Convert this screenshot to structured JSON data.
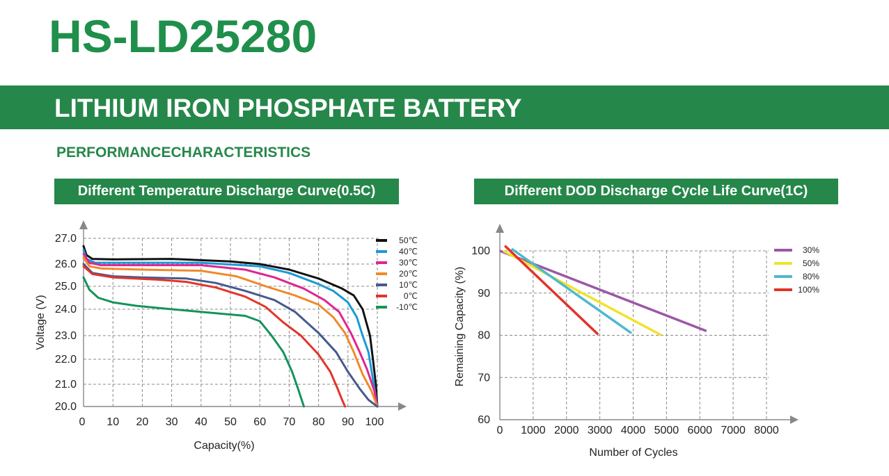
{
  "model": "HS-LD25280",
  "banner": "LITHIUM IRON PHOSPHATE BATTERY",
  "section": "PERFORMANCECHARACTERISTICS",
  "chart_data": [
    {
      "type": "line",
      "title": "Different Temperature Discharge Curve(0.5C)",
      "xlabel": "Capacity(%)",
      "ylabel": "Voltage (V)",
      "xlim": [
        0,
        100
      ],
      "ylim": [
        20.0,
        27.0
      ],
      "x_ticks": [
        "0",
        "10",
        "20",
        "30",
        "40",
        "50",
        "60",
        "70",
        "80",
        "90",
        "100"
      ],
      "y_ticks": [
        "20.0",
        "21.0",
        "22.0",
        "23.0",
        "24.0",
        "25.0",
        "26.0",
        "27.0"
      ],
      "grid": true,
      "legend": "top-right",
      "series": [
        {
          "name": "50℃",
          "color": "#111111",
          "points": [
            [
              0,
              26.7
            ],
            [
              1,
              26.35
            ],
            [
              3,
              26.2
            ],
            [
              10,
              26.18
            ],
            [
              30,
              26.2
            ],
            [
              50,
              26.1
            ],
            [
              60,
              26.0
            ],
            [
              70,
              25.75
            ],
            [
              80,
              25.35
            ],
            [
              88,
              24.9
            ],
            [
              92,
              24.6
            ],
            [
              95,
              24.0
            ],
            [
              97.5,
              23.0
            ],
            [
              98.5,
              22.0
            ],
            [
              99.5,
              21.0
            ],
            [
              100,
              20.0
            ]
          ]
        },
        {
          "name": "40℃",
          "color": "#1a9ad6",
          "points": [
            [
              0,
              26.55
            ],
            [
              1,
              26.2
            ],
            [
              4,
              26.05
            ],
            [
              20,
              26.05
            ],
            [
              40,
              26.05
            ],
            [
              60,
              25.9
            ],
            [
              70,
              25.6
            ],
            [
              80,
              25.1
            ],
            [
              85,
              24.8
            ],
            [
              90,
              24.3
            ],
            [
              93,
              23.7
            ],
            [
              95,
              23.0
            ],
            [
              97,
              22.3
            ],
            [
              98.5,
              21.2
            ],
            [
              100,
              20.0
            ]
          ]
        },
        {
          "name": "30℃",
          "color": "#e0258f",
          "points": [
            [
              0,
              26.4
            ],
            [
              2,
              26.05
            ],
            [
              6,
              25.95
            ],
            [
              20,
              25.95
            ],
            [
              40,
              25.95
            ],
            [
              55,
              25.75
            ],
            [
              65,
              25.4
            ],
            [
              75,
              24.9
            ],
            [
              82,
              24.4
            ],
            [
              87,
              23.9
            ],
            [
              91,
              23.1
            ],
            [
              94,
              22.3
            ],
            [
              96.5,
              21.6
            ],
            [
              99,
              20.7
            ],
            [
              100,
              20.0
            ]
          ]
        },
        {
          "name": "20℃",
          "color": "#ef8a2a",
          "points": [
            [
              0,
              26.25
            ],
            [
              2,
              25.9
            ],
            [
              6,
              25.8
            ],
            [
              20,
              25.75
            ],
            [
              40,
              25.7
            ],
            [
              52,
              25.45
            ],
            [
              62,
              25.0
            ],
            [
              72,
              24.6
            ],
            [
              80,
              24.2
            ],
            [
              85,
              23.7
            ],
            [
              89,
              23.1
            ],
            [
              92,
              22.3
            ],
            [
              95,
              21.4
            ],
            [
              98,
              20.7
            ],
            [
              100,
              20.0
            ]
          ]
        },
        {
          "name": "10℃",
          "color": "#455a8c",
          "points": [
            [
              0,
              26.0
            ],
            [
              3,
              25.6
            ],
            [
              10,
              25.45
            ],
            [
              20,
              25.4
            ],
            [
              35,
              25.35
            ],
            [
              45,
              25.15
            ],
            [
              55,
              24.8
            ],
            [
              65,
              24.4
            ],
            [
              72,
              23.9
            ],
            [
              80,
              23.1
            ],
            [
              86,
              22.3
            ],
            [
              90,
              21.5
            ],
            [
              94,
              20.8
            ],
            [
              97,
              20.3
            ],
            [
              100,
              19.9
            ]
          ]
        },
        {
          "name": "0℃",
          "color": "#e2342b",
          "points": [
            [
              0,
              25.9
            ],
            [
              3,
              25.55
            ],
            [
              10,
              25.4
            ],
            [
              25,
              25.3
            ],
            [
              35,
              25.2
            ],
            [
              45,
              24.95
            ],
            [
              55,
              24.55
            ],
            [
              62,
              24.1
            ],
            [
              68,
              23.5
            ],
            [
              74,
              23.0
            ],
            [
              80,
              22.2
            ],
            [
              84,
              21.5
            ],
            [
              86.5,
              20.8
            ],
            [
              88,
              20.3
            ],
            [
              89,
              20.0
            ]
          ]
        },
        {
          "name": "-10℃",
          "color": "#15935a",
          "points": [
            [
              0,
              25.4
            ],
            [
              2,
              24.85
            ],
            [
              5,
              24.5
            ],
            [
              10,
              24.3
            ],
            [
              18,
              24.15
            ],
            [
              30,
              24.0
            ],
            [
              45,
              23.85
            ],
            [
              55,
              23.75
            ],
            [
              60,
              23.55
            ],
            [
              64,
              23.0
            ],
            [
              68,
              22.3
            ],
            [
              71,
              21.5
            ],
            [
              73,
              20.8
            ],
            [
              75,
              20.0
            ]
          ]
        }
      ]
    },
    {
      "type": "line",
      "title": "Different DOD Discharge Cycle Life Curve(1C)",
      "xlabel": "Number of Cycles",
      "ylabel": "Remaining Capacity (%)",
      "xlim": [
        0,
        8000
      ],
      "ylim": [
        60,
        100
      ],
      "x_ticks": [
        "0",
        "1000",
        "2000",
        "3000",
        "4000",
        "5000",
        "6000",
        "7000",
        "8000"
      ],
      "y_ticks": [
        "60",
        "70",
        "80",
        "90",
        "100"
      ],
      "grid": true,
      "legend": "top-right",
      "series": [
        {
          "name": "30%",
          "color": "#9b57a6",
          "points": [
            [
              0,
              100
            ],
            [
              6200,
              81
            ]
          ]
        },
        {
          "name": "50%",
          "color": "#f2e22a",
          "points": [
            [
              100,
              100
            ],
            [
              4850,
              80
            ]
          ]
        },
        {
          "name": "80%",
          "color": "#4fb8cf",
          "points": [
            [
              350,
              100.5
            ],
            [
              3950,
              80.5
            ]
          ]
        },
        {
          "name": "100%",
          "color": "#e0332b",
          "points": [
            [
              150,
              101.2
            ],
            [
              2950,
              80.2
            ]
          ]
        }
      ]
    }
  ]
}
